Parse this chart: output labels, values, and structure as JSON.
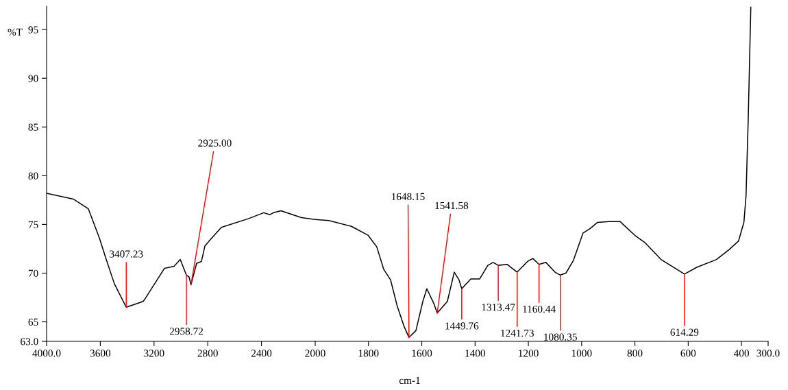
{
  "chart_data": [
    {
      "type": "line",
      "ylabel": "%T",
      "x": [
        4000,
        3801,
        3689,
        3607,
        3551,
        3495,
        3407,
        3281,
        3265,
        3122,
        3051,
        3005,
        2959,
        2939,
        2925,
        2883,
        2847,
        2821,
        2770,
        2699,
        2495,
        2383,
        2337,
        2311,
        2255,
        2102,
        2000
      ],
      "series": [
        {
          "color": "#000000",
          "values": [
            78.2,
            77.6,
            76.6,
            73.6,
            71.2,
            68.9,
            66.5,
            67.1,
            67.4,
            70.5,
            70.7,
            71.4,
            69.8,
            69.6,
            68.8,
            71.0,
            71.2,
            72.8,
            73.6,
            74.7,
            75.6,
            76.2,
            76.0,
            76.2,
            76.4,
            75.7,
            75.5
          ]
        }
      ],
      "xlim": [
        4000,
        2000
      ],
      "xticks": [
        {
          "value": 4000,
          "label": "4000.0"
        },
        3600,
        3200,
        2800,
        2400
      ],
      "ylim": [
        63,
        97.4
      ],
      "yticks": [
        {
          "value": 63,
          "label": "63.0"
        },
        65,
        70,
        75,
        80,
        85,
        90,
        95
      ],
      "annotations": [
        {
          "text": "3407.23",
          "x": 3407,
          "y": 66.5
        },
        {
          "text": "2958.72",
          "x": 2959,
          "y": 69.8
        },
        {
          "text": "2925.00",
          "x": 2925,
          "y": 68.8
        }
      ]
    },
    {
      "type": "line",
      "xlabel": "cm-1",
      "tick_labels": "x",
      "x": [
        2000,
        1949,
        1864,
        1802,
        1769,
        1743,
        1717,
        1692,
        1666,
        1648,
        1622,
        1596,
        1581,
        1555,
        1542,
        1504,
        1478,
        1460,
        1450,
        1416,
        1383,
        1352,
        1332,
        1313,
        1280,
        1242,
        1203,
        1183,
        1160,
        1134,
        1100,
        1080,
        1059,
        1031,
        995,
        967,
        941,
        897,
        856,
        797,
        761,
        702,
        614,
        568,
        494,
        447,
        411,
        391,
        383,
        375,
        365
      ],
      "series": [
        {
          "color": "#000000",
          "values": [
            75.5,
            75.4,
            74.8,
            73.9,
            72.7,
            70.4,
            69.3,
            66.6,
            64.5,
            63.4,
            64.1,
            67.1,
            68.4,
            66.9,
            65.9,
            67.1,
            70.1,
            69.3,
            68.4,
            69.4,
            69.4,
            70.8,
            71.1,
            70.8,
            70.9,
            70.1,
            71.2,
            71.5,
            70.9,
            71.1,
            70.1,
            69.8,
            70.0,
            71.3,
            74.1,
            74.6,
            75.2,
            75.3,
            75.3,
            73.8,
            73.1,
            71.4,
            69.9,
            70.6,
            71.4,
            72.4,
            73.3,
            75.2,
            77.9,
            85.5,
            97.3
          ]
        }
      ],
      "xlim": [
        2000,
        300
      ],
      "xticks": [
        2000,
        1800,
        1600,
        1400,
        1200,
        1000,
        800,
        600,
        400,
        {
          "value": 300,
          "label": "300.0"
        }
      ],
      "ylim": [
        63,
        97.4
      ],
      "annotations": [
        {
          "text": "1648.15",
          "x": 1648,
          "y": 63.4
        },
        {
          "text": "1541.58",
          "x": 1542,
          "y": 65.9
        },
        {
          "text": "1449.76",
          "x": 1450,
          "y": 68.4
        },
        {
          "text": "1313.47",
          "x": 1313,
          "y": 70.8
        },
        {
          "text": "1241.73",
          "x": 1242,
          "y": 70.1
        },
        {
          "text": "1160.44",
          "x": 1160,
          "y": 70.9
        },
        {
          "text": "1080.35",
          "x": 1080,
          "y": 69.8
        },
        {
          "text": "614.29",
          "x": 614,
          "y": 69.9
        }
      ]
    }
  ]
}
